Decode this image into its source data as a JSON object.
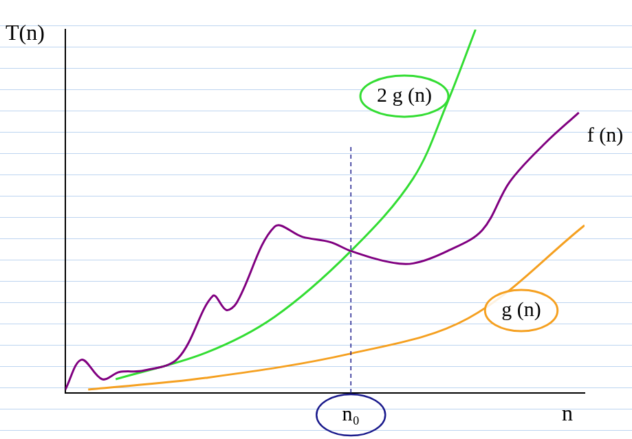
{
  "chart_data": {
    "type": "line",
    "x_label": "n",
    "y_label": "T(n)",
    "xlim": [
      0,
      100
    ],
    "ylim": [
      0,
      106
    ],
    "tick_labels": false,
    "grid": false,
    "series": [
      {
        "name": "f (n)",
        "color": "#800080",
        "x": [
          0,
          3.1,
          7.1,
          10.4,
          15.0,
          21.7,
          28.4,
          31.0,
          33.0,
          40.3,
          45.7,
          51.0,
          55.0,
          61.7,
          67.0,
          73.6,
          80.3,
          85.6,
          92.3,
          98.9
        ],
        "values": [
          1.0,
          9.7,
          4.0,
          6.1,
          6.5,
          10.1,
          28.3,
          24.2,
          26.3,
          48.5,
          45.5,
          44.0,
          41.4,
          38.4,
          37.8,
          41.4,
          47.5,
          61.6,
          72.7,
          81.8
        ]
      },
      {
        "name": "2 g (n)",
        "color": "#33dd33",
        "x": [
          9.7,
          27.0,
          40.3,
          55.0,
          67.0,
          73.6,
          79.0
        ],
        "values": [
          4.0,
          11.7,
          22.2,
          41.4,
          62.6,
          84.8,
          106
        ]
      },
      {
        "name": "g (n)",
        "color": "#f5a020",
        "x": [
          4.4,
          27.0,
          55.0,
          77.6,
          100
        ],
        "values": [
          1.0,
          4.4,
          11.5,
          21.8,
          48.9
        ]
      }
    ],
    "annotations": [
      {
        "text": "n₀",
        "x": 55.0
      }
    ]
  }
}
